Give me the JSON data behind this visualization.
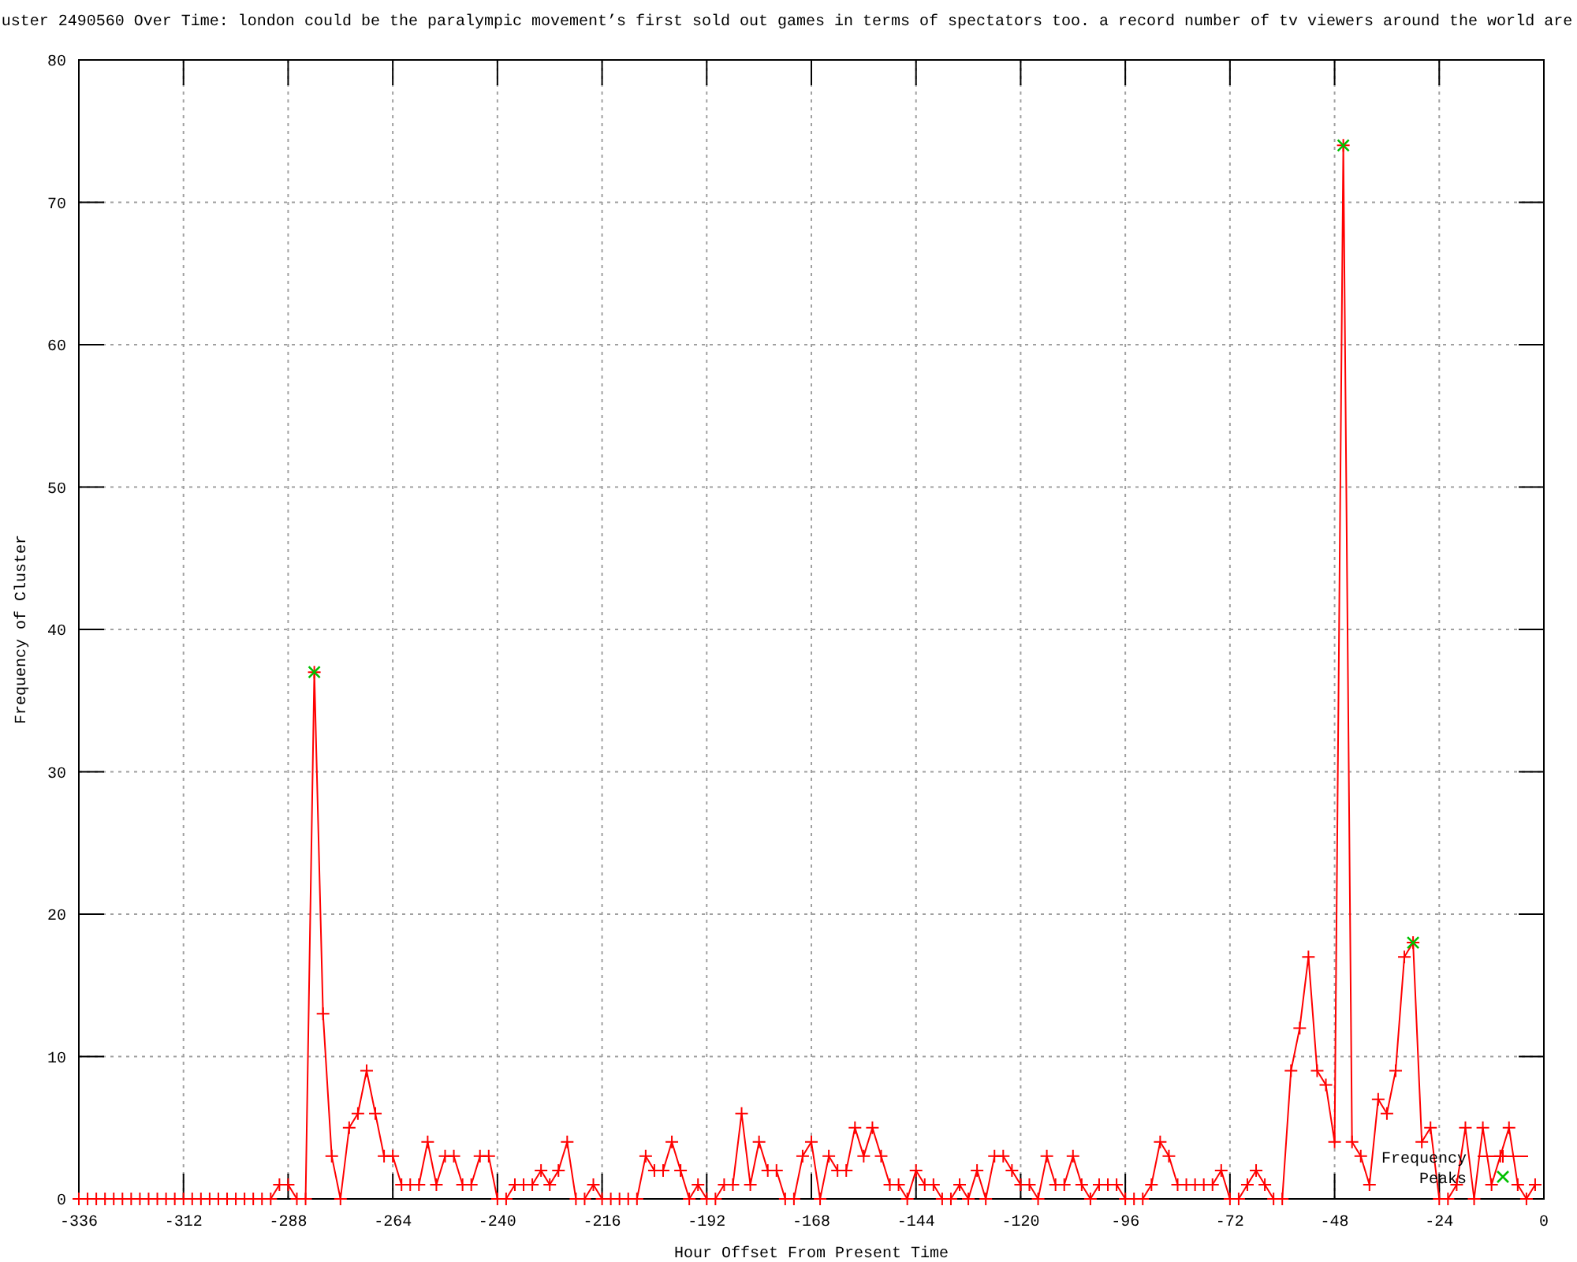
{
  "chart_data": {
    "type": "line",
    "title": "uster 2490560 Over Time: london could be the paralympic movement’s first sold out games in terms of spectators too. a record number of tv viewers around the world are",
    "xlabel": "Hour Offset From Present Time",
    "ylabel": "Frequency of Cluster",
    "xlim": [
      -336,
      0
    ],
    "ylim": [
      0,
      80
    ],
    "xticks": [
      -336,
      -312,
      -288,
      -264,
      -240,
      -216,
      -192,
      -168,
      -144,
      -120,
      -96,
      -72,
      -48,
      -24,
      0
    ],
    "yticks": [
      0,
      10,
      20,
      30,
      40,
      50,
      60,
      70,
      80
    ],
    "grid": true,
    "legend": "bottom right",
    "x": [
      -336,
      -334,
      -332,
      -330,
      -328,
      -326,
      -324,
      -322,
      -320,
      -318,
      -316,
      -314,
      -312,
      -310,
      -308,
      -306,
      -304,
      -302,
      -300,
      -298,
      -296,
      -294,
      -292,
      -290,
      -288,
      -286,
      -284,
      -282,
      -280,
      -278,
      -276,
      -274,
      -272,
      -270,
      -268,
      -266,
      -264,
      -262,
      -260,
      -258,
      -256,
      -254,
      -252,
      -250,
      -248,
      -246,
      -244,
      -242,
      -240,
      -238,
      -236,
      -234,
      -232,
      -230,
      -228,
      -226,
      -224,
      -222,
      -220,
      -218,
      -216,
      -214,
      -212,
      -210,
      -208,
      -206,
      -204,
      -202,
      -200,
      -198,
      -196,
      -194,
      -192,
      -190,
      -188,
      -186,
      -184,
      -182,
      -180,
      -178,
      -176,
      -174,
      -172,
      -170,
      -168,
      -166,
      -164,
      -162,
      -160,
      -158,
      -156,
      -154,
      -152,
      -150,
      -148,
      -146,
      -144,
      -142,
      -140,
      -138,
      -136,
      -134,
      -132,
      -130,
      -128,
      -126,
      -124,
      -122,
      -120,
      -118,
      -116,
      -114,
      -112,
      -110,
      -108,
      -106,
      -104,
      -102,
      -100,
      -98,
      -96,
      -94,
      -92,
      -90,
      -88,
      -86,
      -84,
      -82,
      -80,
      -78,
      -76,
      -74,
      -72,
      -70,
      -68,
      -66,
      -64,
      -62,
      -60,
      -58,
      -56,
      -54,
      -52,
      -50,
      -48,
      -46,
      -44,
      -42,
      -40,
      -38,
      -36,
      -34,
      -32,
      -30,
      -28,
      -26,
      -24,
      -22,
      -20,
      -18,
      -16,
      -14,
      -12,
      -10,
      -8,
      -6,
      -4,
      -2
    ],
    "series": [
      {
        "name": "Frequency",
        "color": "#ff0000",
        "marker": "cross",
        "values": [
          0,
          0,
          0,
          0,
          0,
          0,
          0,
          0,
          0,
          0,
          0,
          0,
          0,
          0,
          0,
          0,
          0,
          0,
          0,
          0,
          0,
          0,
          0,
          1,
          1,
          0,
          0,
          37,
          13,
          3,
          0,
          5,
          6,
          9,
          6,
          3,
          3,
          1,
          1,
          1,
          4,
          1,
          3,
          3,
          1,
          1,
          3,
          3,
          0,
          0,
          1,
          1,
          1,
          2,
          1,
          2,
          4,
          0,
          0,
          1,
          0,
          0,
          0,
          0,
          0,
          3,
          2,
          2,
          4,
          2,
          0,
          1,
          0,
          0,
          1,
          1,
          6,
          1,
          4,
          2,
          2,
          0,
          0,
          3,
          4,
          0,
          3,
          2,
          2,
          5,
          3,
          5,
          3,
          1,
          1,
          0,
          2,
          1,
          1,
          0,
          0,
          1,
          0,
          2,
          0,
          3,
          3,
          2,
          1,
          1,
          0,
          3,
          1,
          1,
          3,
          1,
          0,
          1,
          1,
          1,
          0,
          0,
          0,
          1,
          4,
          3,
          1,
          1,
          1,
          1,
          1,
          2,
          0,
          0,
          1,
          2,
          1,
          0,
          0,
          9,
          12,
          17,
          9,
          8,
          4,
          74,
          4,
          3,
          1,
          7,
          6,
          9,
          17,
          18,
          4,
          5,
          0,
          0,
          1,
          5,
          0,
          5,
          1,
          3,
          5,
          1,
          0,
          1
        ]
      },
      {
        "name": "Peaks",
        "type": "scatter",
        "color": "#00c000",
        "marker": "x",
        "x": [
          -282,
          -46,
          -30
        ],
        "values": [
          37,
          74,
          18
        ]
      }
    ]
  }
}
